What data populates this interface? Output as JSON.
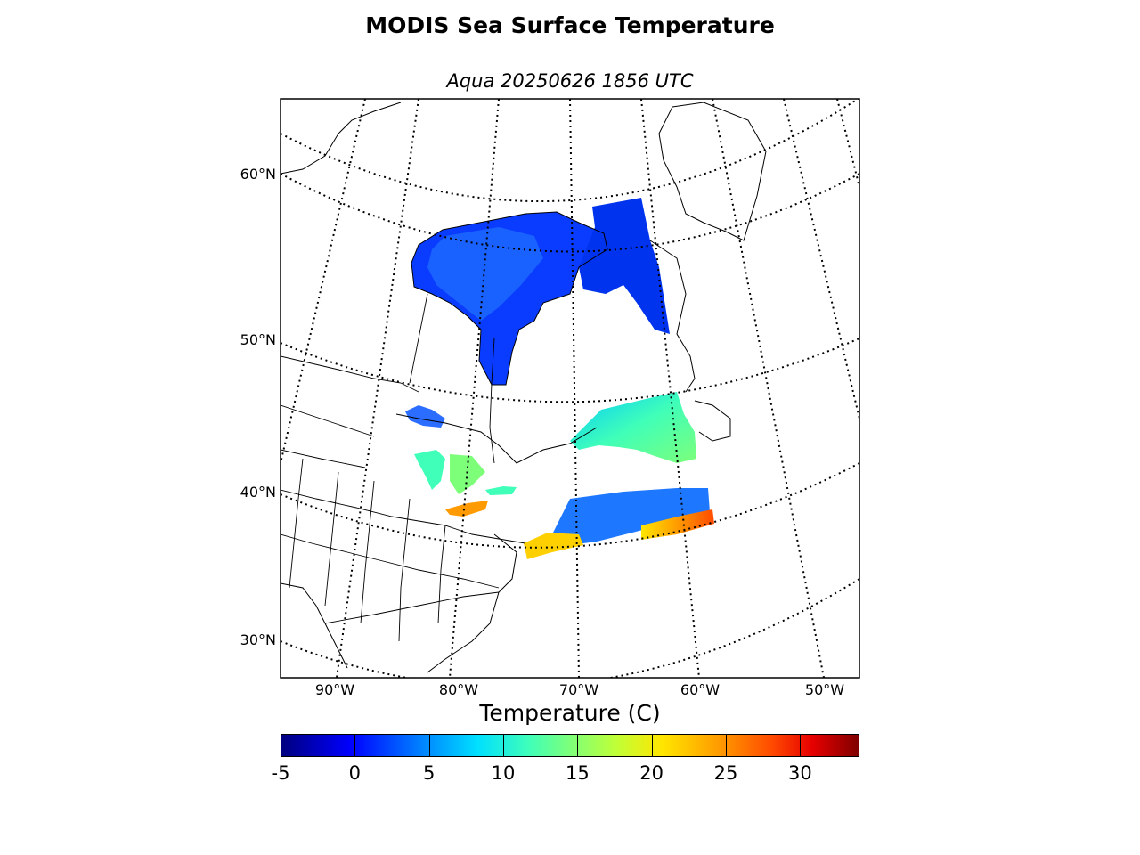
{
  "title": "MODIS Sea Surface Temperature",
  "subtitle": "Aqua 20250626 1856 UTC",
  "latitude_labels": [
    "60°N",
    "50°N",
    "40°N",
    "30°N"
  ],
  "longitude_labels": [
    "90°W",
    "80°W",
    "70°W",
    "60°W",
    "50°W"
  ],
  "colorbar": {
    "label": "Temperature (C)",
    "ticks": [
      "-5",
      "0",
      "5",
      "10",
      "15",
      "20",
      "25",
      "30"
    ],
    "min": -5,
    "max": 34
  },
  "colors": {
    "land_line": "#000000",
    "cold": "#0000ff",
    "mid": "#40ffb8",
    "warm": "#ff9a00",
    "hot": "#e60000"
  }
}
